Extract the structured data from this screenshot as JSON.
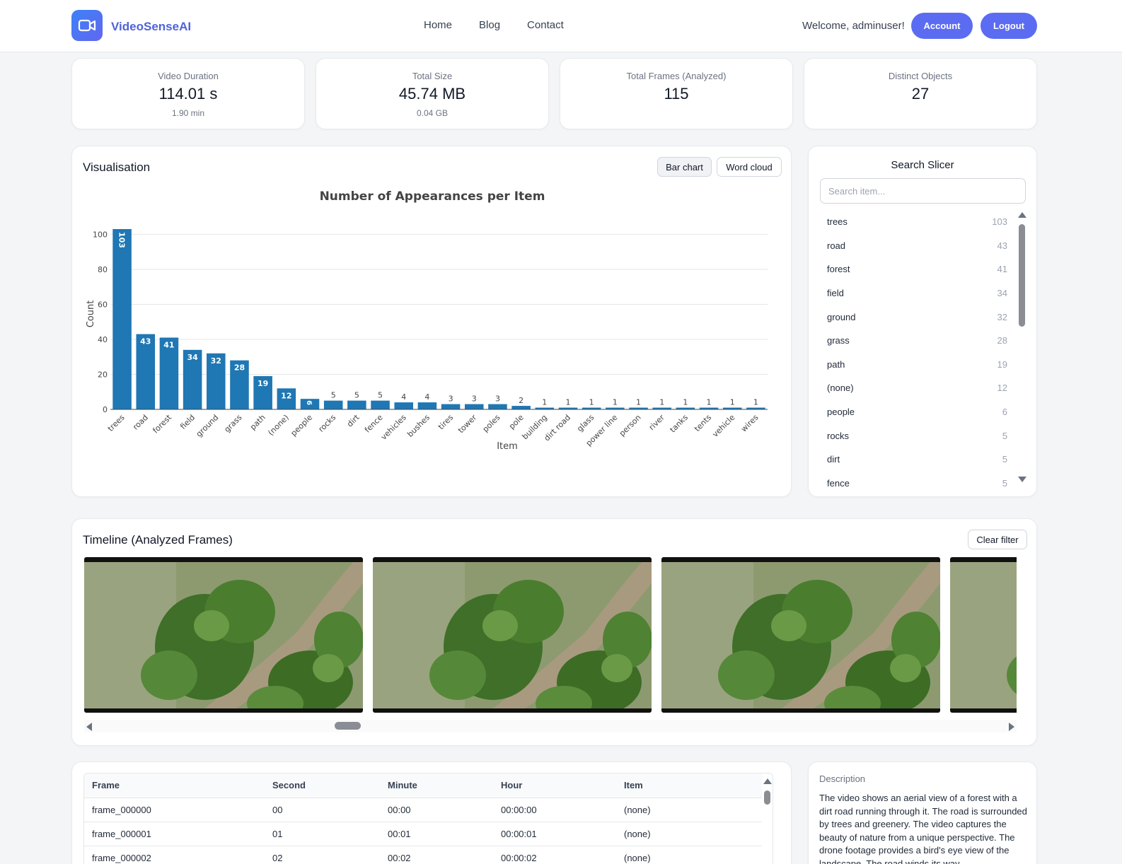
{
  "header": {
    "brand": "VideoSenseAI",
    "nav": [
      "Home",
      "Blog",
      "Contact"
    ],
    "welcome": "Welcome, adminuser!",
    "account": "Account",
    "logout": "Logout"
  },
  "stats": [
    {
      "label": "Video Duration",
      "value": "114.01 s",
      "sub": "1.90 min"
    },
    {
      "label": "Total Size",
      "value": "45.74 MB",
      "sub": "0.04 GB"
    },
    {
      "label": "Total Frames (Analyzed)",
      "value": "115",
      "sub": ""
    },
    {
      "label": "Distinct Objects",
      "value": "27",
      "sub": ""
    }
  ],
  "visualisation": {
    "title": "Visualisation",
    "bar_chart_btn": "Bar chart",
    "word_cloud_btn": "Word cloud"
  },
  "chart_data": {
    "type": "bar",
    "title": "Number of Appearances per Item",
    "xlabel": "Item",
    "ylabel": "Count",
    "ylim": [
      0,
      103
    ],
    "yticks": [
      0,
      20,
      40,
      60,
      80,
      100
    ],
    "categories": [
      "trees",
      "road",
      "forest",
      "field",
      "ground",
      "grass",
      "path",
      "(none)",
      "people",
      "rocks",
      "dirt",
      "fence",
      "vehicles",
      "bushes",
      "tires",
      "tower",
      "poles",
      "pole",
      "building",
      "dirt road",
      "glass",
      "power line",
      "person",
      "river",
      "tanks",
      "tents",
      "vehicle",
      "wires"
    ],
    "values": [
      103,
      43,
      41,
      34,
      32,
      28,
      19,
      12,
      6,
      5,
      5,
      5,
      4,
      4,
      3,
      3,
      3,
      2,
      1,
      1,
      1,
      1,
      1,
      1,
      1,
      1,
      1,
      1
    ],
    "color": "#1f77b4",
    "grid": true
  },
  "slicer": {
    "title": "Search Slicer",
    "placeholder": "Search item...",
    "items": [
      {
        "label": "trees",
        "count": "103"
      },
      {
        "label": "road",
        "count": "43"
      },
      {
        "label": "forest",
        "count": "41"
      },
      {
        "label": "field",
        "count": "34"
      },
      {
        "label": "ground",
        "count": "32"
      },
      {
        "label": "grass",
        "count": "28"
      },
      {
        "label": "path",
        "count": "19"
      },
      {
        "label": "(none)",
        "count": "12"
      },
      {
        "label": "people",
        "count": "6"
      },
      {
        "label": "rocks",
        "count": "5"
      },
      {
        "label": "dirt",
        "count": "5"
      },
      {
        "label": "fence",
        "count": "5"
      }
    ]
  },
  "timeline": {
    "title": "Timeline (Analyzed Frames)",
    "clear_filter": "Clear filter"
  },
  "table": {
    "headers": [
      "Frame",
      "Second",
      "Minute",
      "Hour",
      "Item"
    ],
    "rows": [
      [
        "frame_000000",
        "00",
        "00:00",
        "00:00:00",
        "(none)"
      ],
      [
        "frame_000001",
        "01",
        "00:01",
        "00:00:01",
        "(none)"
      ],
      [
        "frame_000002",
        "02",
        "00:02",
        "00:00:02",
        "(none)"
      ]
    ]
  },
  "description": {
    "label": "Description",
    "text": "The video shows an aerial view of a forest with a dirt road running through it. The road is surrounded by trees and greenery. The video captures the beauty of nature from a unique perspective. The drone footage provides a bird's eye view of the landscape. The road winds its way"
  }
}
